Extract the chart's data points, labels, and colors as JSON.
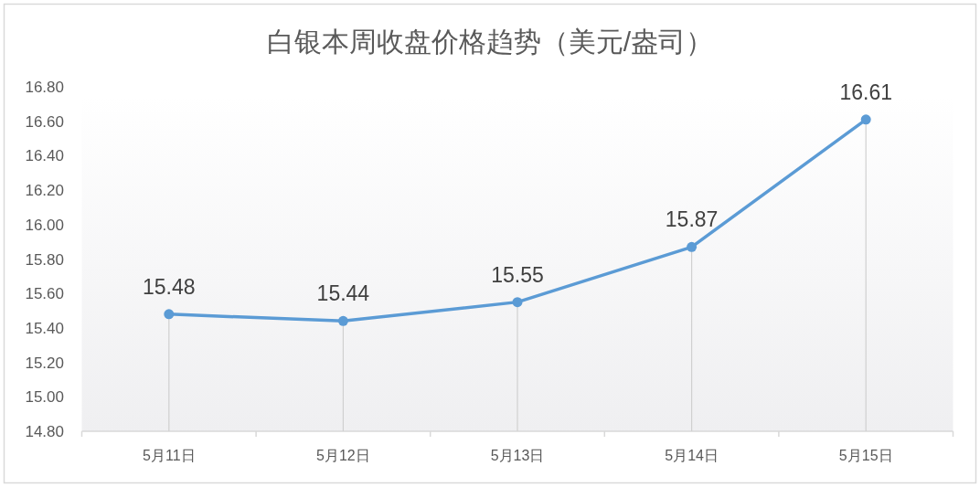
{
  "chart_data": {
    "type": "line",
    "title": "白银本周收盘价格趋势（美元/盎司）",
    "categories": [
      "5月11日",
      "5月12日",
      "5月13日",
      "5月14日",
      "5月15日"
    ],
    "series": [
      {
        "color": "#5b9bd5",
        "values": [
          15.48,
          15.44,
          15.55,
          15.87,
          16.61
        ]
      }
    ],
    "ylim": [
      14.8,
      16.8
    ],
    "yticks": [
      {
        "value": 14.8,
        "label": "14.80"
      },
      {
        "value": 15.0,
        "label": "15.00"
      },
      {
        "value": 15.2,
        "label": "15.20"
      },
      {
        "value": 15.4,
        "label": "15.40"
      },
      {
        "value": 15.6,
        "label": "15.60"
      },
      {
        "value": 15.8,
        "label": "15.80"
      },
      {
        "value": 16.0,
        "label": "16.00"
      },
      {
        "value": 16.2,
        "label": "16.20"
      },
      {
        "value": 16.4,
        "label": "16.40"
      },
      {
        "value": 16.6,
        "label": "16.60"
      },
      {
        "value": 16.8,
        "label": "16.80"
      }
    ],
    "data_labels": true,
    "marker": "circle",
    "line_style": "solid"
  }
}
